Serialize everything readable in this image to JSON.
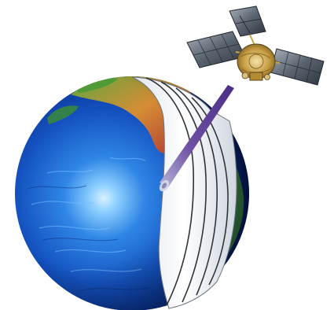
{
  "scene": {
    "description_alt": "",
    "colors": {
      "background": "#ffffff",
      "ocean_deep": "#0b2f8f",
      "ocean_mid": "#1f66d6",
      "ocean_light": "#7fc3ff",
      "land_green": "#6aa83a",
      "land_orange": "#d97a2b",
      "land_red": "#b7312a",
      "swath_white": "#f2f4f6",
      "swath_line": "#3b3f45",
      "beam_purple": "#7a5aa8",
      "panel_dark": "#4b5563",
      "panel_light": "#9aa3ad",
      "body_gold": "#c8a24a"
    },
    "icons": [
      "earth-globe",
      "satellite",
      "radar-beam",
      "scan-swath"
    ]
  }
}
